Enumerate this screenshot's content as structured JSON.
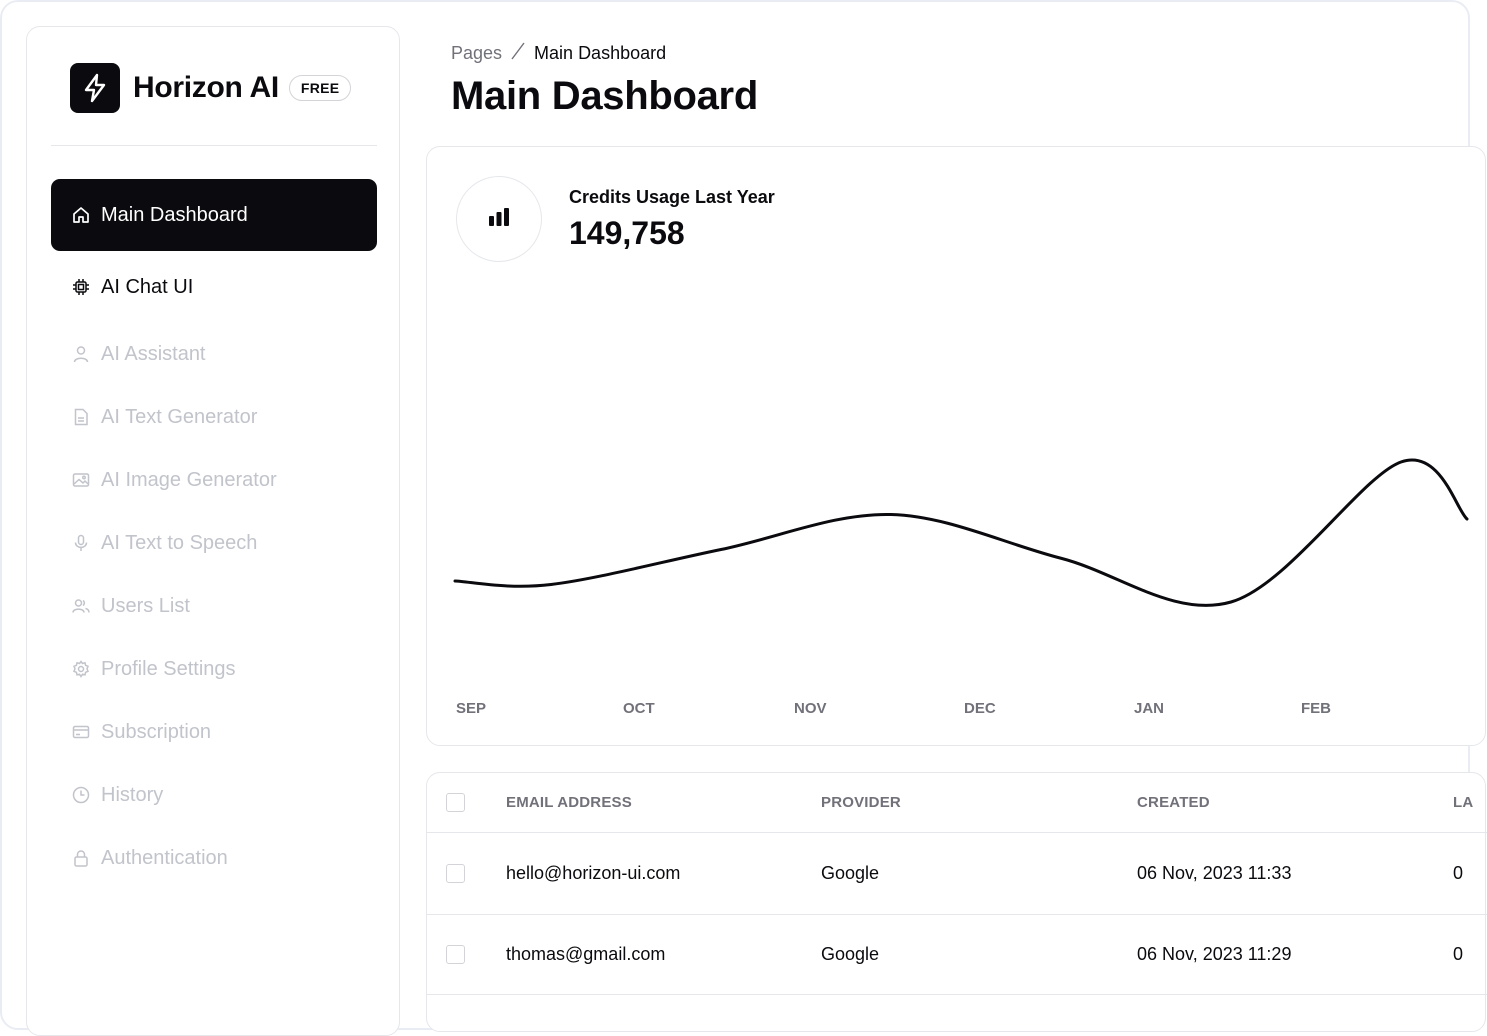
{
  "brand": {
    "name": "Horizon AI",
    "badge": "FREE",
    "logo_icon": "bolt-icon"
  },
  "sidebar": {
    "items": [
      {
        "label": "Main Dashboard",
        "icon": "home-icon",
        "state": "active"
      },
      {
        "label": "AI Chat UI",
        "icon": "chip-icon",
        "state": "enabled"
      },
      {
        "label": "AI Assistant",
        "icon": "user-icon",
        "state": "disabled"
      },
      {
        "label": "AI Text Generator",
        "icon": "document-icon",
        "state": "disabled"
      },
      {
        "label": "AI Image Generator",
        "icon": "image-icon",
        "state": "disabled"
      },
      {
        "label": "AI Text to Speech",
        "icon": "microphone-icon",
        "state": "disabled"
      },
      {
        "label": "Users List",
        "icon": "users-icon",
        "state": "disabled"
      },
      {
        "label": "Profile Settings",
        "icon": "gear-icon",
        "state": "disabled"
      },
      {
        "label": "Subscription",
        "icon": "credit-card-icon",
        "state": "disabled"
      },
      {
        "label": "History",
        "icon": "clock-icon",
        "state": "disabled"
      },
      {
        "label": "Authentication",
        "icon": "lock-icon",
        "state": "disabled"
      }
    ]
  },
  "header": {
    "breadcrumb_root": "Pages",
    "breadcrumb_separator": "/",
    "breadcrumb_current": "Main Dashboard",
    "title": "Main Dashboard"
  },
  "stat": {
    "label": "Credits Usage Last Year",
    "value": "149,758",
    "icon": "bar-chart-icon"
  },
  "chart_data": {
    "type": "line",
    "title": "",
    "x": [
      "SEP",
      "OCT",
      "NOV",
      "DEC",
      "JAN",
      "FEB"
    ],
    "series": [
      {
        "values": [
          0.3,
          0.5,
          0.7,
          0.45,
          0.2,
          1.0
        ]
      }
    ],
    "smooth": true,
    "grid": false,
    "line_color": "#0b0b0f"
  },
  "table": {
    "columns": [
      "EMAIL ADDRESS",
      "PROVIDER",
      "CREATED",
      "LA"
    ],
    "rows": [
      {
        "email": "hello@horizon-ui.com",
        "provider": "Google",
        "created": "06 Nov, 2023 11:33",
        "last": "0"
      },
      {
        "email": "thomas@gmail.com",
        "provider": "Google",
        "created": "06 Nov, 2023 11:29",
        "last": "0"
      }
    ]
  }
}
